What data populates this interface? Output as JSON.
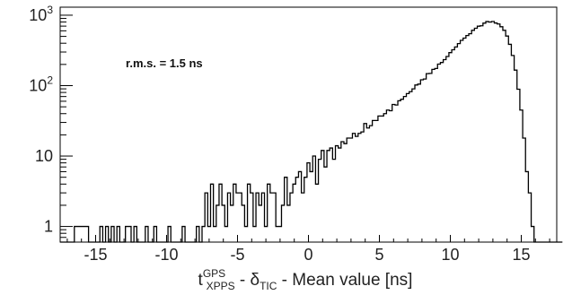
{
  "chart_data": {
    "type": "histogram",
    "title": "",
    "annotation": "r.m.s. = 1.5 ns",
    "xlabel": {
      "parts": [
        {
          "text": "t",
          "style": "normal"
        },
        {
          "text": "GPS",
          "style": "sup"
        },
        {
          "text": "XPPS",
          "style": "sub"
        },
        {
          "text": " - δ",
          "style": "normal"
        },
        {
          "text": "TIC",
          "style": "sub"
        },
        {
          "text": "  - Mean value [ns]",
          "style": "normal"
        }
      ]
    },
    "ylabel": "",
    "xlim": [
      -17.5,
      17.5
    ],
    "ylim": [
      0.6,
      1300
    ],
    "yscale": "log",
    "x_ticks": [
      -15,
      -10,
      -5,
      0,
      5,
      10,
      15
    ],
    "x_tick_labels": [
      "-15",
      "-10",
      "-5",
      "0",
      "5",
      "10",
      "15"
    ],
    "y_ticks": [
      1,
      10,
      100,
      1000
    ],
    "y_tick_labels": [
      {
        "base": "1",
        "exp": ""
      },
      {
        "base": "10",
        "exp": ""
      },
      {
        "base": "10",
        "exp": "2"
      },
      {
        "base": "10",
        "exp": "3"
      }
    ],
    "grid": false,
    "line_color": "#000000",
    "bin_width": 0.2,
    "bin_start": -17.5,
    "counts": [
      0,
      0,
      0,
      0,
      0,
      1,
      1,
      1,
      1,
      1,
      0,
      0,
      0,
      0,
      1,
      0,
      1,
      0,
      1,
      0,
      1,
      0,
      0,
      1,
      1,
      0,
      1,
      0,
      0,
      0,
      1,
      0,
      0,
      1,
      0,
      0,
      0,
      0,
      1,
      0,
      0,
      0,
      0,
      1,
      0,
      0,
      0,
      0,
      1,
      0,
      1,
      3,
      1,
      4,
      1,
      2,
      4,
      2,
      1,
      3,
      2,
      4,
      3,
      3,
      2,
      1,
      4,
      3,
      1,
      3,
      2,
      3,
      1,
      4,
      3,
      3,
      1,
      1,
      2,
      5,
      2,
      3,
      4,
      5,
      6,
      3,
      5,
      8,
      6,
      10,
      4,
      9,
      12,
      7,
      12,
      13,
      9,
      14,
      13,
      16,
      15,
      18,
      18,
      21,
      19,
      21,
      22,
      29,
      25,
      27,
      32,
      32,
      37,
      37,
      40,
      45,
      44,
      54,
      53,
      61,
      64,
      70,
      77,
      82,
      90,
      102,
      105,
      121,
      124,
      148,
      149,
      170,
      175,
      202,
      213,
      234,
      259,
      294,
      323,
      354,
      395,
      439,
      473,
      514,
      545,
      610,
      653,
      698,
      707,
      771,
      812,
      798,
      813,
      774,
      751,
      686,
      610,
      506,
      386,
      268,
      166,
      89,
      45,
      18,
      6,
      3,
      1,
      0,
      0,
      0,
      0,
      0,
      0,
      0,
      0,
      0,
      0
    ]
  }
}
